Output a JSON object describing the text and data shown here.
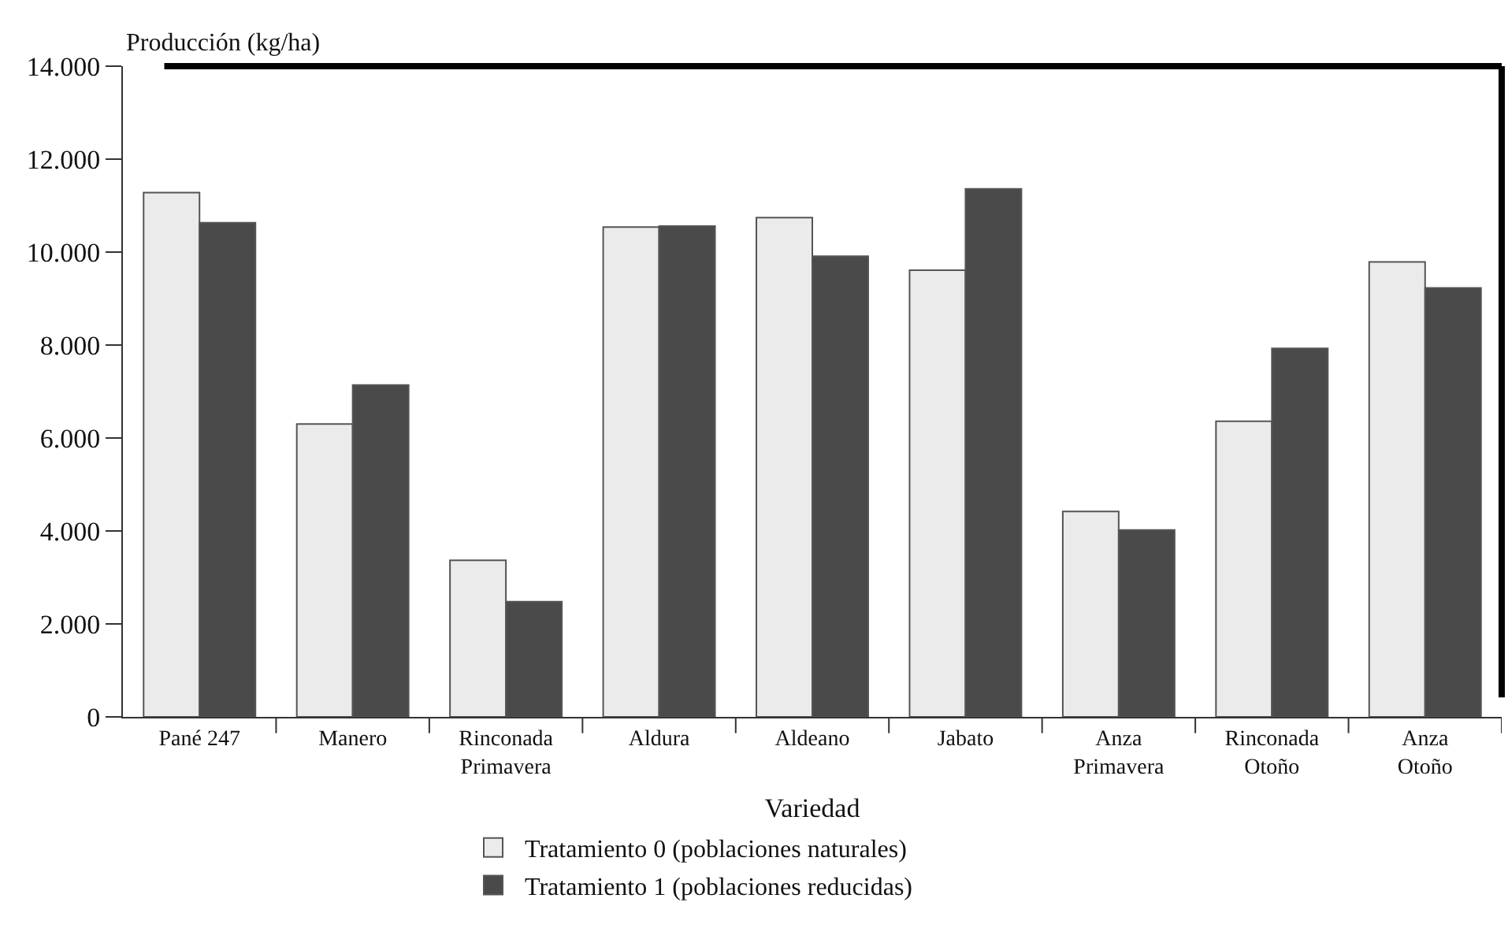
{
  "chart_data": {
    "type": "bar",
    "ylabel": "Producción (kg/ha)",
    "xlabel": "Variedad",
    "categories": [
      "Pané 247",
      "Manero",
      "Rinconada\nPrimavera",
      "Aldura",
      "Aldeano",
      "Jabato",
      "Anza\nPrimavera",
      "Rinconada\nOtoño",
      "Anza\nOtoño"
    ],
    "series": [
      {
        "name": "Tratamiento 0 (poblaciones naturales)",
        "color": "#ebebeb",
        "values": [
          11280,
          6300,
          3370,
          10540,
          10740,
          9610,
          4420,
          6360,
          9790
        ]
      },
      {
        "name": "Tratamiento 1 (poblaciones reducidas)",
        "color": "#4a4a4a",
        "values": [
          10630,
          7140,
          2480,
          10560,
          9910,
          11360,
          4020,
          7930,
          9230
        ]
      }
    ],
    "ylim": [
      0,
      14000
    ],
    "yticks": [
      {
        "value": 0,
        "label": "0"
      },
      {
        "value": 2000,
        "label": "2.000"
      },
      {
        "value": 4000,
        "label": "4.000"
      },
      {
        "value": 6000,
        "label": "6.000"
      },
      {
        "value": 8000,
        "label": "8.000"
      },
      {
        "value": 10000,
        "label": "10.000"
      },
      {
        "value": 12000,
        "label": "12.000"
      },
      {
        "value": 14000,
        "label": "14.000"
      }
    ],
    "grid": false,
    "legend": "bottom"
  }
}
